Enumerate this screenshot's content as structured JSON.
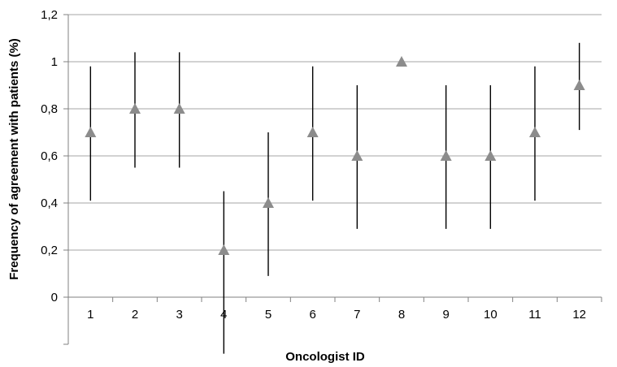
{
  "chart_data": {
    "type": "scatter",
    "title": "",
    "xlabel": "Oncologist ID",
    "ylabel": "Frequency of agreement with patients (%)",
    "categories": [
      "1",
      "2",
      "3",
      "4",
      "5",
      "6",
      "7",
      "8",
      "9",
      "10",
      "11",
      "12"
    ],
    "values": [
      0.7,
      0.8,
      0.8,
      0.2,
      0.4,
      0.7,
      0.6,
      1.0,
      0.6,
      0.6,
      0.7,
      0.9
    ],
    "error_low": [
      0.41,
      0.55,
      0.55,
      -0.24,
      0.09,
      0.41,
      0.29,
      1.0,
      0.29,
      0.29,
      0.41,
      0.71
    ],
    "error_high": [
      0.98,
      1.04,
      1.04,
      0.45,
      0.7,
      0.98,
      0.9,
      1.0,
      0.9,
      0.9,
      0.98,
      1.08
    ],
    "ylim": [
      -0.2,
      1.2
    ],
    "yticks": [
      0,
      0.2,
      0.4,
      0.6,
      0.8,
      1,
      1.2
    ],
    "ytick_labels": [
      "0",
      "0,2",
      "0,4",
      "0,6",
      "0,8",
      "1",
      "1,2"
    ],
    "grid": true,
    "marker": "triangle",
    "colors": {
      "marker": "#8c8c8c",
      "errorbar": "#000000",
      "grid": "#a6a6a6",
      "axis": "#808080"
    }
  }
}
